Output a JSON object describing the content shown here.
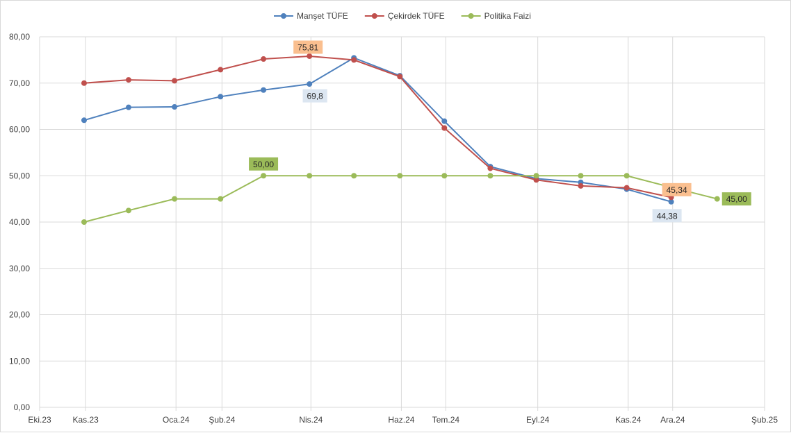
{
  "chart_data": {
    "type": "line",
    "title": "",
    "xlabel": "",
    "ylabel": "",
    "ylim": [
      0,
      80
    ],
    "y_ticks": [
      "0,00",
      "10,00",
      "20,00",
      "30,00",
      "40,00",
      "50,00",
      "60,00",
      "70,00",
      "80,00"
    ],
    "x_ticks": [
      {
        "label": "Eki.23",
        "date": "2023-10-01"
      },
      {
        "label": "Kas.23",
        "date": "2023-11-01"
      },
      {
        "label": "Oca.24",
        "date": "2024-01-01"
      },
      {
        "label": "Şub.24",
        "date": "2024-02-01"
      },
      {
        "label": "Nis.24",
        "date": "2024-04-01"
      },
      {
        "label": "Haz.24",
        "date": "2024-06-01"
      },
      {
        "label": "Tem.24",
        "date": "2024-07-01"
      },
      {
        "label": "Eyl.24",
        "date": "2024-09-01"
      },
      {
        "label": "Kas.24",
        "date": "2024-11-01"
      },
      {
        "label": "Ara.24",
        "date": "2024-12-01"
      },
      {
        "label": "Şub.25",
        "date": "2025-02-01"
      }
    ],
    "grid": true,
    "legend_position": "top",
    "series": [
      {
        "name": "Manşet TÜFE",
        "color": "#4F81BD",
        "points": [
          {
            "x": "2023-10-31",
            "y": 61.98
          },
          {
            "x": "2023-11-30",
            "y": 64.77
          },
          {
            "x": "2023-12-31",
            "y": 64.86
          },
          {
            "x": "2024-01-31",
            "y": 67.07
          },
          {
            "x": "2024-02-29",
            "y": 68.5
          },
          {
            "x": "2024-03-31",
            "y": 69.8,
            "label": "69,8"
          },
          {
            "x": "2024-04-30",
            "y": 75.45
          },
          {
            "x": "2024-05-31",
            "y": 71.6
          },
          {
            "x": "2024-06-30",
            "y": 61.78
          },
          {
            "x": "2024-07-31",
            "y": 51.97
          },
          {
            "x": "2024-08-31",
            "y": 49.38
          },
          {
            "x": "2024-09-30",
            "y": 48.58
          },
          {
            "x": "2024-10-31",
            "y": 47.09
          },
          {
            "x": "2024-11-30",
            "y": 44.38,
            "label": "44,38"
          }
        ]
      },
      {
        "name": "Çekirdek TÜFE",
        "color": "#C0504D",
        "points": [
          {
            "x": "2023-10-31",
            "y": 70.0
          },
          {
            "x": "2023-11-30",
            "y": 70.7
          },
          {
            "x": "2023-12-31",
            "y": 70.5
          },
          {
            "x": "2024-01-31",
            "y": 72.9
          },
          {
            "x": "2024-02-29",
            "y": 75.2
          },
          {
            "x": "2024-03-31",
            "y": 75.81,
            "label": "75,81"
          },
          {
            "x": "2024-04-30",
            "y": 75.0
          },
          {
            "x": "2024-05-31",
            "y": 71.4
          },
          {
            "x": "2024-06-30",
            "y": 60.3
          },
          {
            "x": "2024-07-31",
            "y": 51.6
          },
          {
            "x": "2024-08-31",
            "y": 49.1
          },
          {
            "x": "2024-09-30",
            "y": 47.8
          },
          {
            "x": "2024-10-31",
            "y": 47.4
          },
          {
            "x": "2024-11-30",
            "y": 45.34,
            "label": "45,34"
          }
        ]
      },
      {
        "name": "Politika Faizi",
        "color": "#9BBB59",
        "points": [
          {
            "x": "2023-10-31",
            "y": 40.0
          },
          {
            "x": "2023-11-30",
            "y": 42.5
          },
          {
            "x": "2023-12-31",
            "y": 45.0
          },
          {
            "x": "2024-01-31",
            "y": 45.0
          },
          {
            "x": "2024-02-29",
            "y": 50.0,
            "label": "50,00"
          },
          {
            "x": "2024-03-31",
            "y": 50.0
          },
          {
            "x": "2024-04-30",
            "y": 50.0
          },
          {
            "x": "2024-05-31",
            "y": 50.0
          },
          {
            "x": "2024-06-30",
            "y": 50.0
          },
          {
            "x": "2024-07-31",
            "y": 50.0
          },
          {
            "x": "2024-08-31",
            "y": 50.0
          },
          {
            "x": "2024-09-30",
            "y": 50.0
          },
          {
            "x": "2024-10-31",
            "y": 50.0
          },
          {
            "x": "2024-11-30",
            "y": 47.5
          },
          {
            "x": "2024-12-31",
            "y": 45.0,
            "label": "45,00"
          }
        ]
      }
    ]
  },
  "colors": {
    "grid": "#d9d9d9",
    "axis_text": "#404040",
    "label_fill_series_0": "#DCE6F1",
    "label_fill_series_1": "#FABF8F",
    "label_fill_series_2": "#9BBB59"
  }
}
